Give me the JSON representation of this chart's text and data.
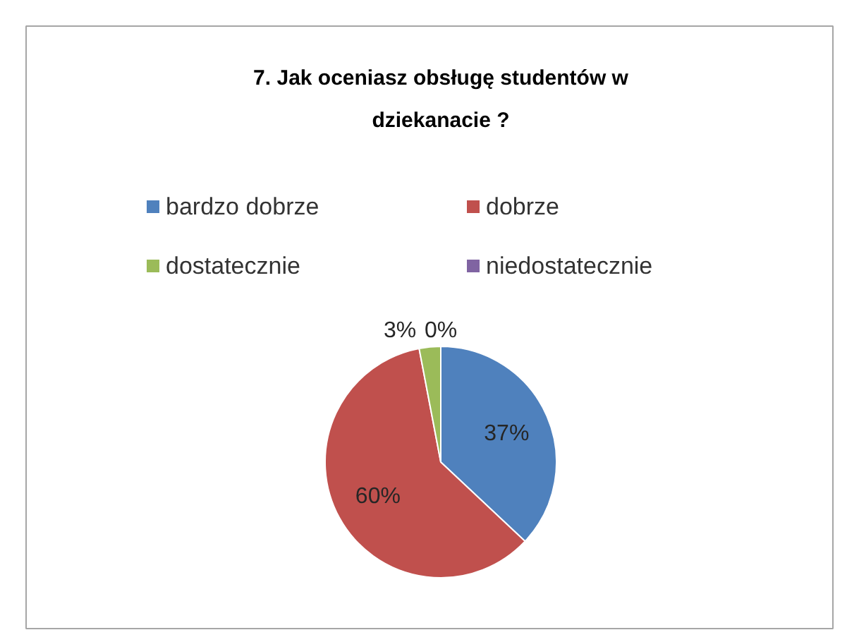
{
  "chart_data": {
    "type": "pie",
    "title": "7. Jak oceniasz obsługę studentów w dziekanacie ?",
    "categories": [
      "bardzo dobrze",
      "dobrze",
      "dostatecznie",
      "niedostatecznie"
    ],
    "values": [
      37,
      60,
      3,
      0
    ],
    "colors": [
      "#4f81bd",
      "#c0504d",
      "#9bbb59",
      "#8064a2"
    ],
    "value_labels": [
      "37%",
      "60%",
      "3%",
      "0%"
    ],
    "legend": "top"
  }
}
